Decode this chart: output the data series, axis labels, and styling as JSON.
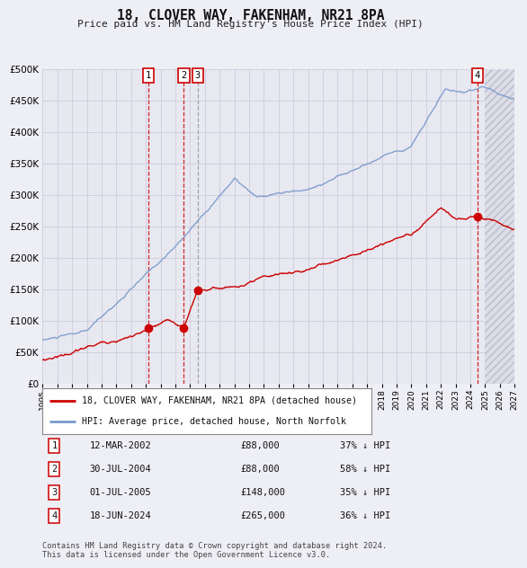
{
  "title": "18, CLOVER WAY, FAKENHAM, NR21 8PA",
  "subtitle": "Price paid vs. HM Land Registry's House Price Index (HPI)",
  "ylim": [
    0,
    500000
  ],
  "yticks": [
    0,
    50000,
    100000,
    150000,
    200000,
    250000,
    300000,
    350000,
    400000,
    450000,
    500000
  ],
  "xlim_start": 1995.0,
  "xlim_end": 2027.0,
  "background_color": "#eeeef5",
  "plot_bg_color": "#e8e8f0",
  "grid_color": "#ccccdd",
  "hpi_color": "#7799cc",
  "price_color": "#cc0000",
  "transactions": [
    {
      "label": "1",
      "date": 2002.19,
      "price": 88000,
      "line_color": "#cc0000"
    },
    {
      "label": "2",
      "date": 2004.58,
      "price": 88000,
      "line_color": "#cc0000"
    },
    {
      "label": "3",
      "date": 2005.5,
      "price": 148000,
      "line_color": "#999999"
    },
    {
      "label": "4",
      "date": 2024.46,
      "price": 265000,
      "line_color": "#cc0000"
    }
  ],
  "legend_items": [
    {
      "label": "18, CLOVER WAY, FAKENHAM, NR21 8PA (detached house)",
      "color": "#cc0000"
    },
    {
      "label": "HPI: Average price, detached house, North Norfolk",
      "color": "#7799cc"
    }
  ],
  "table_rows": [
    {
      "num": "1",
      "date": "12-MAR-2002",
      "price": "£88,000",
      "hpi": "37% ↓ HPI"
    },
    {
      "num": "2",
      "date": "30-JUL-2004",
      "price": "£88,000",
      "hpi": "58% ↓ HPI"
    },
    {
      "num": "3",
      "date": "01-JUL-2005",
      "price": "£148,000",
      "hpi": "35% ↓ HPI"
    },
    {
      "num": "4",
      "date": "18-JUN-2024",
      "price": "£265,000",
      "hpi": "36% ↓ HPI"
    }
  ],
  "footer": "Contains HM Land Registry data © Crown copyright and database right 2024.\nThis data is licensed under the Open Government Licence v3.0.",
  "hatch_start": 2025.0
}
